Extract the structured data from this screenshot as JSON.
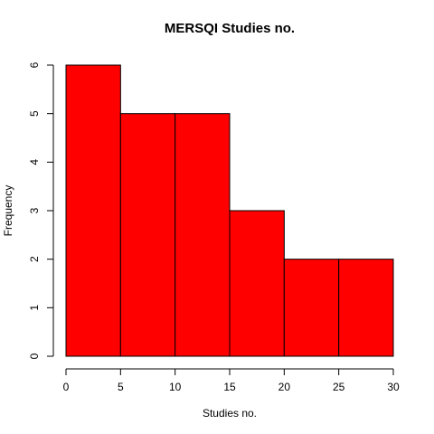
{
  "chart_data": {
    "type": "bar",
    "title": "MERSQI Studies no.",
    "xlabel": "Studies no.",
    "ylabel": "Frequency",
    "bins": [
      [
        0,
        5
      ],
      [
        5,
        10
      ],
      [
        10,
        15
      ],
      [
        15,
        20
      ],
      [
        20,
        25
      ],
      [
        25,
        30
      ]
    ],
    "values": [
      6,
      5,
      5,
      3,
      2,
      2
    ],
    "xticks": [
      0,
      5,
      10,
      15,
      20,
      25,
      30
    ],
    "yticks": [
      0,
      1,
      2,
      3,
      4,
      5,
      6
    ],
    "xlim": [
      0,
      30
    ],
    "ylim": [
      0,
      6
    ],
    "grid": false,
    "bar_color": "#ff0000"
  }
}
